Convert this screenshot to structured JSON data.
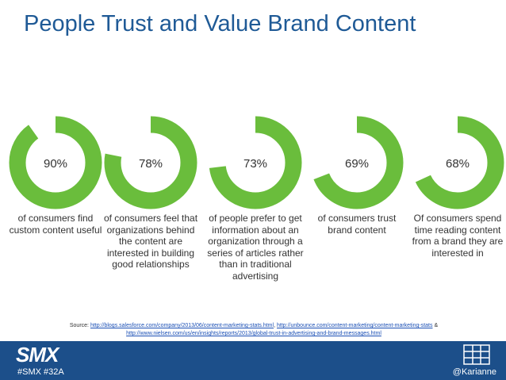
{
  "title": "People Trust and Value Brand Content",
  "chart_data": [
    {
      "type": "donut",
      "values": [
        90
      ],
      "value_labels": [
        "90%"
      ],
      "color": "#6abd3c",
      "caption": "of consumers find custom content useful"
    },
    {
      "type": "donut",
      "values": [
        78
      ],
      "value_labels": [
        "78%"
      ],
      "color": "#6abd3c",
      "caption": "of consumers feel that organizations behind the content are interested in building good relationships"
    },
    {
      "type": "donut",
      "values": [
        73
      ],
      "value_labels": [
        "73%"
      ],
      "color": "#6abd3c",
      "caption": "of people prefer to get information about an organization through a series of articles rather than in traditional advertising"
    },
    {
      "type": "donut",
      "values": [
        69
      ],
      "value_labels": [
        "69%"
      ],
      "color": "#6abd3c",
      "caption": "of consumers trust brand content"
    },
    {
      "type": "donut",
      "values": [
        68
      ],
      "value_labels": [
        "68%"
      ],
      "color": "#6abd3c",
      "caption": "Of consumers spend time reading content from a brand they are interested in"
    }
  ],
  "source": {
    "label": "Source:",
    "links": [
      "http://blogs.salesforce.com/company/2013/06/content-marketing-stats.html",
      "http://unbounce.com/content-marketing/content-marketing-stats",
      "http://www.nielsen.com/us/en/insights/reports/2013/global-trust-in-advertising-and-brand-messages.html"
    ],
    "joiners": [
      ",",
      "&"
    ]
  },
  "footer": {
    "logo": "SMX",
    "hashtags": "#SMX #32A",
    "handle": "@Karianne"
  }
}
